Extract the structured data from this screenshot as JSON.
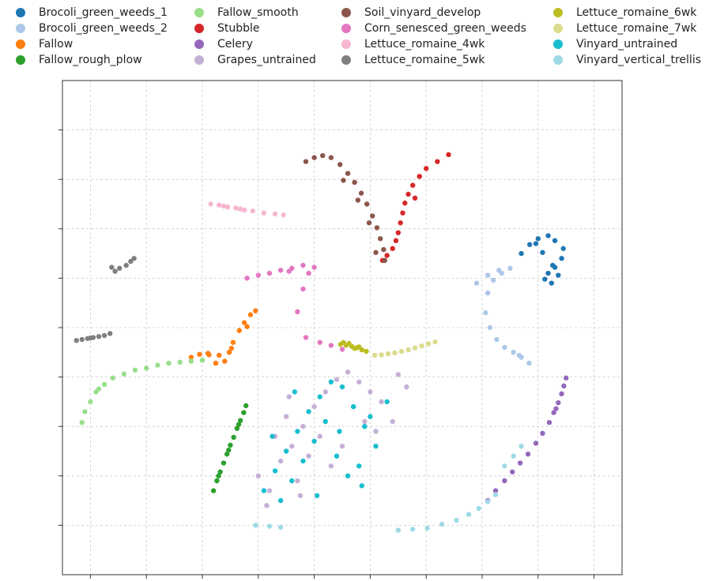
{
  "chart_data": {
    "type": "scatter",
    "title": "",
    "xlabel": "",
    "ylabel": "",
    "grid": true,
    "tick_labels_shown": false,
    "xlim": [
      -50,
      50
    ],
    "ylim": [
      -50,
      50
    ],
    "legend_placement": "top, outside plot, 4 columns",
    "series": [
      {
        "name": "Brocoli_green_weeds_1",
        "color": "#1f77b4",
        "x": [
          32,
          33.5,
          35,
          36.8,
          38,
          39.5,
          39.2,
          38,
          36.8,
          36.2,
          37.4,
          38.6,
          37.6,
          35.8,
          34.6
        ],
        "y": [
          15,
          16.8,
          18,
          18.6,
          17.6,
          16,
          14,
          12.2,
          11,
          9.8,
          9,
          10.6,
          12.6,
          15.2,
          17
        ]
      },
      {
        "name": "Brocoli_green_weeds_2",
        "color": "#aec7e8",
        "x": [
          24,
          26,
          28,
          30,
          28.5,
          27,
          26,
          25.6,
          26.4,
          27.6,
          29,
          30.6,
          32,
          33.4,
          31.6
        ],
        "y": [
          9,
          10.6,
          11.6,
          12,
          11,
          9.6,
          7,
          3,
          0,
          -2.4,
          -4,
          -5,
          -6,
          -7.2,
          -5.6
        ]
      },
      {
        "name": "Fallow",
        "color": "#ff7f0e",
        "x": [
          -27,
          -25.5,
          -24,
          -22,
          -21,
          -20.2,
          -19.5,
          -18.4,
          -17.5,
          -16.4,
          -15.5,
          -22.6,
          -19.8,
          -17,
          -23.8
        ],
        "y": [
          -6,
          -5.4,
          -5.2,
          -5.6,
          -6.8,
          -5,
          -3,
          -0.6,
          1,
          2.6,
          3.4,
          -7.2,
          -4.2,
          0.2,
          -5.5
        ]
      },
      {
        "name": "Fallow_rough_plow",
        "color": "#2ca02c",
        "x": [
          -23,
          -22.4,
          -21.8,
          -21.2,
          -20.6,
          -20,
          -19.4,
          -18.8,
          -18.2,
          -17.6,
          -17.2,
          -22.1,
          -20.3,
          -18.5
        ],
        "y": [
          -33,
          -31,
          -29.2,
          -27.4,
          -25.6,
          -23.8,
          -22.2,
          -20.4,
          -18.8,
          -17.2,
          -15.8,
          -30,
          -24.8,
          -19.6
        ]
      },
      {
        "name": "Fallow_smooth",
        "color": "#98df8a",
        "x": [
          -46.5,
          -46,
          -45,
          -44,
          -42.5,
          -41,
          -39,
          -37,
          -35,
          -33,
          -31,
          -29,
          -27,
          -25,
          -43.5
        ],
        "y": [
          -19.2,
          -17,
          -15,
          -13,
          -11.5,
          -10.2,
          -9.4,
          -8.6,
          -8.2,
          -7.6,
          -7.2,
          -7,
          -6.8,
          -6.6,
          -12.4
        ]
      },
      {
        "name": "Stubble",
        "color": "#d62728",
        "x": [
          19,
          17,
          15,
          13.8,
          12.6,
          11.8,
          11.2,
          10.8,
          10.4,
          10,
          9.6,
          9,
          8,
          7.2,
          13
        ],
        "y": [
          35,
          33.6,
          32.2,
          30.6,
          28.8,
          27,
          25.2,
          23.2,
          21.2,
          19.2,
          17.6,
          16,
          14.6,
          13.6,
          26.2
        ]
      },
      {
        "name": "Celery",
        "color": "#9467bd",
        "x": [
          40,
          39.6,
          39.2,
          38.6,
          37.8,
          37,
          35.8,
          34.6,
          33.2,
          31.8,
          30.4,
          29,
          27.4,
          26,
          38.2
        ],
        "y": [
          -10.2,
          -11.8,
          -13.4,
          -15.2,
          -17.2,
          -19.2,
          -21.4,
          -23.4,
          -25.6,
          -27.4,
          -29.2,
          -31,
          -33,
          -35,
          -16.4
        ]
      },
      {
        "name": "Grapes_untrained",
        "color": "#c5b0d5",
        "x": [
          -15,
          -13,
          -11,
          -9,
          -7,
          -5,
          -3,
          -1,
          1,
          3,
          5,
          7,
          9,
          10,
          11.5,
          -13.5,
          -12,
          -10,
          -8,
          -6,
          -4,
          -2,
          0,
          2,
          4,
          6,
          -9.5,
          -7.5
        ],
        "y": [
          -30,
          -33,
          -27,
          -24,
          -20,
          -16,
          -13,
          -10.5,
          -9,
          -11,
          -13,
          -15,
          -19,
          -9.5,
          -12,
          -36,
          -22,
          -18,
          -31,
          -26,
          -22,
          -28,
          -24,
          -16,
          -19,
          -21,
          -14,
          -34
        ]
      },
      {
        "name": "Soil_vinyard_develop",
        "color": "#8c564b",
        "x": [
          -6.5,
          -5,
          -3.5,
          -2,
          -0.4,
          1,
          2.2,
          3.4,
          4.4,
          5.4,
          6.2,
          6.8,
          7.4,
          7.6,
          0.2,
          2.8,
          4.8,
          6
        ],
        "y": [
          33.6,
          34.4,
          34.8,
          34.4,
          33,
          31.2,
          29.4,
          27.2,
          25,
          22.6,
          20.2,
          18,
          15.8,
          13.6,
          29.8,
          25.8,
          21.2,
          15.2
        ]
      },
      {
        "name": "Corn_senesced_green_weeds",
        "color": "#e377c2",
        "x": [
          -17,
          -15,
          -13,
          -11,
          -9,
          -7,
          -5,
          -6,
          -7,
          -8,
          -6.5,
          -4,
          -2,
          0,
          -9.5
        ],
        "y": [
          10,
          10.6,
          11,
          11.6,
          12,
          12.6,
          12.2,
          11,
          7.8,
          3.2,
          -2,
          -3,
          -3.6,
          -4.4,
          11.4
        ]
      },
      {
        "name": "Lettuce_romaine_4wk",
        "color": "#f7b6d2",
        "x": [
          -23.5,
          -22,
          -20.5,
          -19,
          -17.5,
          -16,
          -14,
          -12,
          -10.5,
          -21.2,
          -18.2
        ],
        "y": [
          25,
          24.8,
          24.4,
          24.2,
          23.8,
          23.6,
          23.2,
          23,
          22.8,
          24.6,
          24
        ]
      },
      {
        "name": "Lettuce_romaine_5wk",
        "color": "#7f7f7f",
        "x": [
          -47.5,
          -46.5,
          -45.5,
          -44.5,
          -43.5,
          -42.5,
          -41.5,
          -40.6,
          -39.8,
          -38.6,
          -37.8,
          -37.2,
          -45,
          -41.2
        ],
        "y": [
          -2.6,
          -2.4,
          -2.2,
          -2,
          -1.8,
          -1.6,
          -1.2,
          11.4,
          12,
          12.6,
          13.4,
          14,
          -2.1,
          12.2
        ]
      },
      {
        "name": "Lettuce_romaine_6wk",
        "color": "#bcbd22",
        "x": [
          -0.3,
          0.7,
          1.7,
          2.6,
          3.5,
          4.3,
          1.2,
          2.2,
          3,
          0.2
        ],
        "y": [
          -3.4,
          -3.6,
          -3.8,
          -4.1,
          -4.5,
          -4.8,
          -3.2,
          -4.2,
          -3.9,
          -3
        ]
      },
      {
        "name": "Lettuce_romaine_7wk",
        "color": "#dbdb8d",
        "x": [
          5.8,
          7,
          8.2,
          9.4,
          10.6,
          11.8,
          13,
          14.2,
          15.4,
          16.6
        ],
        "y": [
          -5.6,
          -5.5,
          -5.3,
          -5.1,
          -4.8,
          -4.5,
          -4.1,
          -3.7,
          -3.3,
          -2.9
        ]
      },
      {
        "name": "Vinyard_untrained",
        "color": "#17becf",
        "x": [
          -14,
          -12,
          -10,
          -8,
          -6,
          -4,
          -2,
          0,
          2,
          4,
          6,
          8,
          -11,
          -9,
          -7,
          -5,
          -3,
          -1,
          1,
          3,
          5,
          -12.5,
          -8.5,
          -4.5,
          -0.5,
          3.5
        ],
        "y": [
          -33,
          -29,
          -25,
          -21,
          -17,
          -14,
          -11,
          -12,
          -16,
          -20,
          -24,
          -15,
          -35,
          -31,
          -27,
          -23,
          -19,
          -26,
          -30,
          -28,
          -18,
          -22,
          -13,
          -34,
          -21,
          -32
        ]
      },
      {
        "name": "Vinyard_vertical_trellis",
        "color": "#9edae5",
        "x": [
          -15.5,
          -13,
          -11,
          10,
          12.6,
          15.2,
          17.8,
          20.4,
          22.6,
          24.4,
          26,
          27.4,
          29,
          30.6,
          32
        ],
        "y": [
          -40,
          -40.2,
          -40.4,
          -41,
          -40.8,
          -40.6,
          -39.8,
          -39,
          -37.8,
          -36.6,
          -35.2,
          -33.8,
          -28,
          -26,
          -24
        ]
      }
    ]
  }
}
